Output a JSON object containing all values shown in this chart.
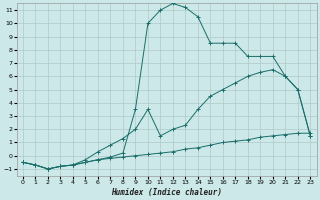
{
  "xlabel": "Humidex (Indice chaleur)",
  "bg_color": "#cce8e8",
  "grid_color": "#b0c8c8",
  "line_color": "#1a6e6a",
  "xlim": [
    -0.5,
    23.5
  ],
  "ylim": [
    -1.5,
    11.5
  ],
  "xticks": [
    0,
    1,
    2,
    3,
    4,
    5,
    6,
    7,
    8,
    9,
    10,
    11,
    12,
    13,
    14,
    15,
    16,
    17,
    18,
    19,
    20,
    21,
    22,
    23
  ],
  "yticks": [
    -1,
    0,
    1,
    2,
    3,
    4,
    5,
    6,
    7,
    8,
    9,
    10,
    11
  ],
  "curve1_x": [
    0,
    1,
    2,
    3,
    4,
    5,
    6,
    7,
    8,
    9,
    10,
    11,
    12,
    13,
    14,
    15,
    16,
    17,
    18,
    19,
    20,
    21,
    22,
    23
  ],
  "curve1_y": [
    -0.5,
    -0.7,
    -1.0,
    -0.8,
    -0.7,
    -0.5,
    -0.3,
    -0.2,
    -0.1,
    0.0,
    0.1,
    0.2,
    0.3,
    0.5,
    0.6,
    0.8,
    1.0,
    1.1,
    1.2,
    1.4,
    1.5,
    1.6,
    1.7,
    1.7
  ],
  "curve2_x": [
    0,
    1,
    2,
    3,
    4,
    5,
    6,
    7,
    8,
    9,
    10,
    11,
    12,
    13,
    14,
    15,
    16,
    17,
    18,
    19,
    20,
    21,
    22,
    23
  ],
  "curve2_y": [
    -0.5,
    -0.7,
    -1.0,
    -0.8,
    -0.7,
    -0.5,
    -0.3,
    -0.1,
    0.2,
    3.5,
    10.0,
    11.0,
    11.5,
    11.2,
    10.5,
    8.5,
    8.5,
    8.5,
    7.5,
    7.5,
    7.5,
    6.0,
    5.0,
    1.5
  ],
  "curve3_x": [
    0,
    1,
    2,
    3,
    4,
    5,
    6,
    7,
    8,
    9,
    10,
    11,
    12,
    13,
    14,
    15,
    16,
    17,
    18,
    19,
    20,
    21,
    22,
    23
  ],
  "curve3_y": [
    -0.5,
    -0.7,
    -1.0,
    -0.8,
    -0.7,
    -0.3,
    0.3,
    0.8,
    1.3,
    2.0,
    3.5,
    1.5,
    2.0,
    2.3,
    3.5,
    4.5,
    5.0,
    5.5,
    6.0,
    6.3,
    6.5,
    6.0,
    5.0,
    1.5
  ]
}
